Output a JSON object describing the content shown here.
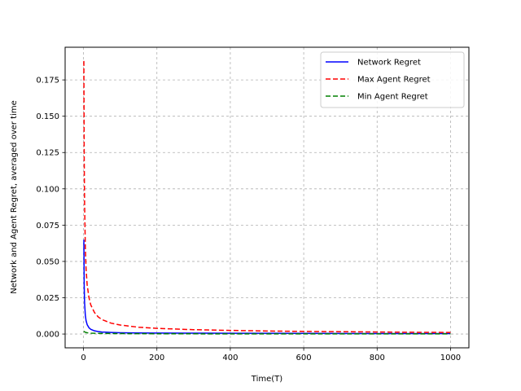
{
  "chart_data": {
    "type": "line",
    "title": "",
    "xlabel": "Time(T)",
    "ylabel": "Network and Agent Regret, averaged over time",
    "xlim": [
      -50,
      1050
    ],
    "ylim": [
      -0.0095,
      0.1975
    ],
    "xticks": [
      0,
      200,
      400,
      600,
      800,
      1000
    ],
    "xtick_labels": [
      "0",
      "200",
      "400",
      "600",
      "800",
      "1000"
    ],
    "yticks": [
      0.0,
      0.025,
      0.05,
      0.075,
      0.1,
      0.125,
      0.15,
      0.175
    ],
    "ytick_labels": [
      "0.000",
      "0.025",
      "0.050",
      "0.075",
      "0.100",
      "0.125",
      "0.150",
      "0.175"
    ],
    "grid": true,
    "legend": "top-right",
    "series": [
      {
        "name": "Network Regret",
        "color": "#0000ff",
        "style": "solid",
        "x": [
          1,
          2,
          3,
          5,
          7,
          10,
          15,
          20,
          30,
          40,
          50,
          75,
          100,
          150,
          200,
          300,
          400,
          500,
          600,
          700,
          800,
          900,
          1000
        ],
        "y": [
          0.065,
          0.0325,
          0.0217,
          0.013,
          0.0093,
          0.0065,
          0.0043,
          0.00325,
          0.0022,
          0.0017,
          0.0014,
          0.0011,
          0.0009,
          0.00075,
          0.0007,
          0.0006,
          0.00055,
          0.0005,
          0.00045,
          0.0004,
          0.00035,
          0.0003,
          0.0003
        ]
      },
      {
        "name": "Max Agent Regret",
        "color": "#ff0000",
        "style": "dashed",
        "x": [
          1,
          2,
          3,
          5,
          7,
          10,
          15,
          20,
          30,
          40,
          50,
          75,
          100,
          150,
          200,
          300,
          400,
          500,
          600,
          700,
          800,
          900,
          1000
        ],
        "y": [
          0.188,
          0.12,
          0.09,
          0.06,
          0.045,
          0.034,
          0.025,
          0.02,
          0.0148,
          0.0118,
          0.01,
          0.0075,
          0.0062,
          0.0047,
          0.0039,
          0.003,
          0.0025,
          0.0021,
          0.0018,
          0.0016,
          0.0014,
          0.0012,
          0.0011
        ]
      },
      {
        "name": "Min Agent Regret",
        "color": "#008000",
        "style": "dashed",
        "x": [
          1,
          3,
          5,
          10,
          20,
          50,
          100,
          200,
          400,
          600,
          800,
          1000
        ],
        "y": [
          0.002,
          0.0015,
          0.0012,
          0.0009,
          0.0006,
          0.0004,
          0.0003,
          0.0002,
          0.0001,
          0.0001,
          0.0001,
          0.0001
        ]
      }
    ]
  }
}
